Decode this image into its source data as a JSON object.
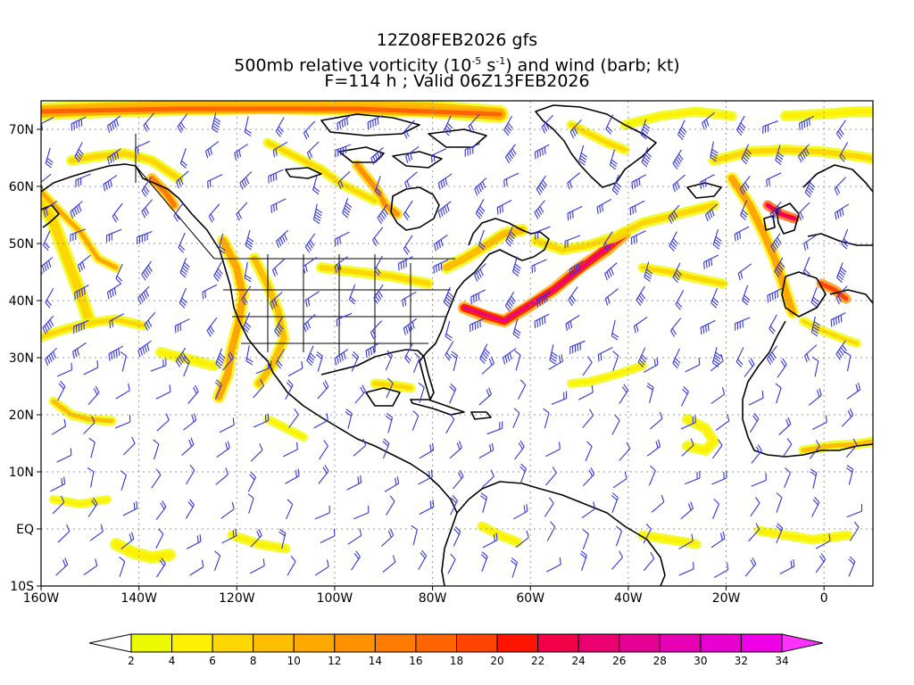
{
  "header": {
    "line1": "12Z08FEB2026 gfs",
    "line2_pre": "500mb relative vorticity (10",
    "line2_exp1": "-5",
    "line2_mid": " s",
    "line2_exp2": "-1",
    "line2_post": ") and wind (barb; kt)",
    "line3": "F=114 h ; Valid 06Z13FEB2026"
  },
  "map": {
    "lon_range": [
      -160,
      10
    ],
    "lat_range": [
      -10,
      75
    ],
    "lat_ticks": [
      {
        "value": 70,
        "label": "70N"
      },
      {
        "value": 60,
        "label": "60N"
      },
      {
        "value": 50,
        "label": "50N"
      },
      {
        "value": 40,
        "label": "40N"
      },
      {
        "value": 30,
        "label": "30N"
      },
      {
        "value": 20,
        "label": "20N"
      },
      {
        "value": 10,
        "label": "10N"
      },
      {
        "value": 0,
        "label": "EQ"
      },
      {
        "value": -10,
        "label": "10S"
      }
    ],
    "lon_ticks": [
      {
        "value": -160,
        "label": "160W"
      },
      {
        "value": -140,
        "label": "140W"
      },
      {
        "value": -120,
        "label": "120W"
      },
      {
        "value": -100,
        "label": "100W"
      },
      {
        "value": -80,
        "label": "80W"
      },
      {
        "value": -60,
        "label": "60W"
      },
      {
        "value": -40,
        "label": "40W"
      },
      {
        "value": -20,
        "label": "20W"
      },
      {
        "value": 0,
        "label": "0"
      }
    ],
    "colors": {
      "barb": "#3333dd",
      "coast": "#000000",
      "grid": "#999999"
    }
  },
  "colorbar": {
    "levels": [
      "2",
      "4",
      "6",
      "8",
      "10",
      "12",
      "14",
      "16",
      "18",
      "20",
      "22",
      "24",
      "26",
      "28",
      "30",
      "32",
      "34"
    ],
    "colors": [
      "#ffffff",
      "#ecfa00",
      "#fff000",
      "#ffd700",
      "#ffbe00",
      "#ffa800",
      "#ff9200",
      "#ff7c00",
      "#ff6400",
      "#ff4400",
      "#ff1400",
      "#f4004a",
      "#ec0070",
      "#e60094",
      "#e600b4",
      "#e800d0",
      "#f000e6",
      "#ff33ff"
    ]
  }
}
